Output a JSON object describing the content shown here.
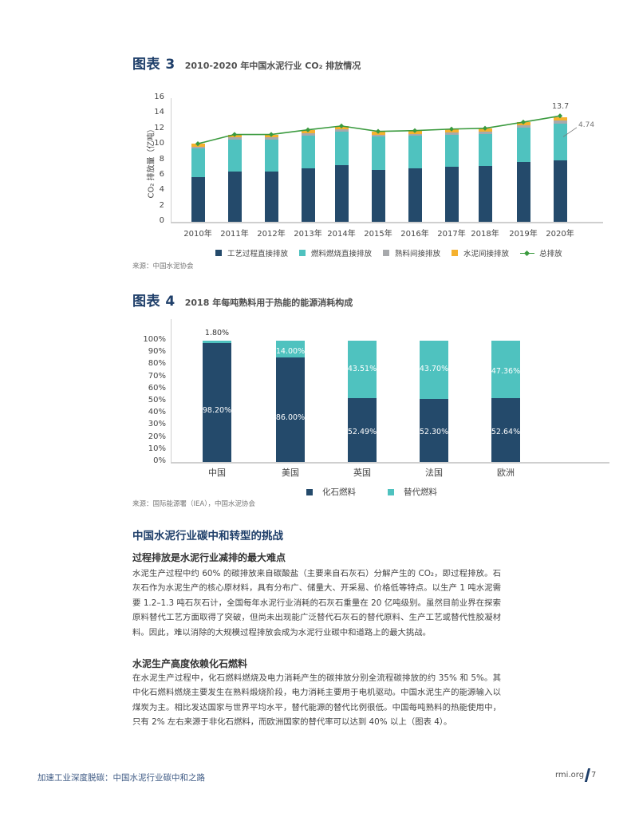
{
  "figure3": {
    "number": "图表 3",
    "title": "2010-2020 年中国水泥行业 CO₂ 排放情况",
    "source": "来源：中国水泥协会"
  },
  "figure4": {
    "number": "图表 4",
    "title": "2018 年每吨熟料用于热能的能源消耗构成",
    "source": "来源：国际能源署（IEA），中国水泥协会"
  },
  "section": {
    "heading": "中国水泥行业碳中和转型的挑战",
    "sub1": {
      "heading": "过程排放是水泥行业减排的最大难点",
      "body": "水泥生产过程中约 60% 的碳排放来自碳酸盐（主要来自石灰石）分解产生的 CO₂，即过程排放。石灰石作为水泥生产的核心原材料，具有分布广、储量大、开采易、价格低等特点。以生产 1 吨水泥需要 1.2–1.3 吨石灰石计，全国每年水泥行业消耗的石灰石重量在 20 亿吨级别。虽然目前业界在探索原料替代工艺方面取得了突破，但尚未出现能广泛替代石灰石的替代原料、生产工艺或替代性胶凝材料。因此，难以消除的大规模过程排放会成为水泥行业碳中和道路上的最大挑战。"
    },
    "sub2": {
      "heading": "水泥生产高度依赖化石燃料",
      "body": "在水泥生产过程中，化石燃料燃烧及电力消耗产生的碳排放分别全流程碳排放的约 35% 和 5%。其中化石燃料燃烧主要发生在熟料煅烧阶段，电力消耗主要用于电机驱动。中国水泥生产的能源输入以煤炭为主。相比发达国家与世界平均水平，替代能源的替代比例很低。中国每吨熟料的热能使用中，只有 2% 左右来源于非化石燃料，而欧洲国家的替代率可以达到 40% 以上（图表 4）。"
    }
  },
  "footer": {
    "title": "加速工业深度脱碳：中国水泥行业碳中和之路",
    "site": "rmi.org",
    "page": "7"
  },
  "colors": {
    "navy": "#244a6b",
    "teal": "#4fc2bf",
    "gray": "#a7a9ac",
    "orange": "#f5b12e",
    "green": "#3a9a3e",
    "heading_blue": "#1f3f6a"
  },
  "chart_data": [
    {
      "type": "bar",
      "stacked": true,
      "title": "2010-2020 年中国水泥行业 CO₂ 排放情况",
      "xlabel": "",
      "ylabel": "CO₂ 排放量（亿吨）",
      "ylim": [
        0,
        16
      ],
      "yticks": [
        0,
        2,
        4,
        6,
        8,
        10,
        12,
        14,
        16
      ],
      "categories": [
        "2010年",
        "2011年",
        "2012年",
        "2013年",
        "2014年",
        "2015年",
        "2016年",
        "2017年",
        "2018年",
        "2019年",
        "2020年"
      ],
      "series": [
        {
          "name": "工艺过程直接排放",
          "color": "#244a6b",
          "values": [
            5.8,
            6.5,
            6.5,
            6.9,
            7.3,
            6.7,
            6.9,
            7.1,
            7.2,
            7.7,
            8.0
          ]
        },
        {
          "name": "燃料燃烧直接排放",
          "color": "#4fc2bf",
          "values": [
            3.7,
            4.1,
            4.1,
            4.3,
            4.4,
            4.3,
            4.2,
            4.2,
            4.2,
            4.5,
            4.74
          ]
        },
        {
          "name": "熟料间接排放",
          "color": "#a7a9ac",
          "values": [
            0.2,
            0.3,
            0.3,
            0.3,
            0.3,
            0.3,
            0.3,
            0.3,
            0.3,
            0.3,
            0.35
          ]
        },
        {
          "name": "水泥间接排放",
          "color": "#f5b12e",
          "values": [
            0.4,
            0.4,
            0.4,
            0.4,
            0.4,
            0.4,
            0.4,
            0.4,
            0.4,
            0.4,
            0.41
          ]
        },
        {
          "name": "总排放",
          "type": "line",
          "color": "#3a9a3e",
          "values": [
            10.1,
            11.3,
            11.3,
            11.9,
            12.4,
            11.7,
            11.8,
            12.0,
            12.1,
            12.9,
            13.7
          ]
        }
      ],
      "annotations": [
        {
          "text": "13.7",
          "category": "2020年",
          "series": "总排放"
        },
        {
          "text": "4.74",
          "category": "2020年",
          "series": "燃料燃烧直接排放"
        }
      ],
      "legend_position": "bottom",
      "grid": false
    },
    {
      "type": "bar",
      "stacked": true,
      "title": "2018 年每吨熟料用于热能的能源消耗构成",
      "xlabel": "",
      "ylabel": "",
      "ylim": [
        0,
        100
      ],
      "yticks": [
        "0%",
        "10%",
        "20%",
        "30%",
        "40%",
        "50%",
        "60%",
        "70%",
        "80%",
        "90%",
        "100%"
      ],
      "categories": [
        "中国",
        "美国",
        "英国",
        "法国",
        "欧洲"
      ],
      "series": [
        {
          "name": "化石燃料",
          "color": "#244a6b",
          "values": [
            98.2,
            86.0,
            52.49,
            52.3,
            52.64
          ],
          "labels": [
            "98.20%",
            "86.00%",
            "52.49%",
            "52.30%",
            "52.64%"
          ]
        },
        {
          "name": "替代燃料",
          "color": "#4fc2bf",
          "values": [
            1.8,
            14.0,
            43.51,
            43.7,
            47.36
          ],
          "labels": [
            "1.80%",
            "14.00%",
            "43.51%",
            "43.70%",
            "47.36%"
          ]
        }
      ],
      "legend_position": "bottom",
      "grid": false
    }
  ]
}
